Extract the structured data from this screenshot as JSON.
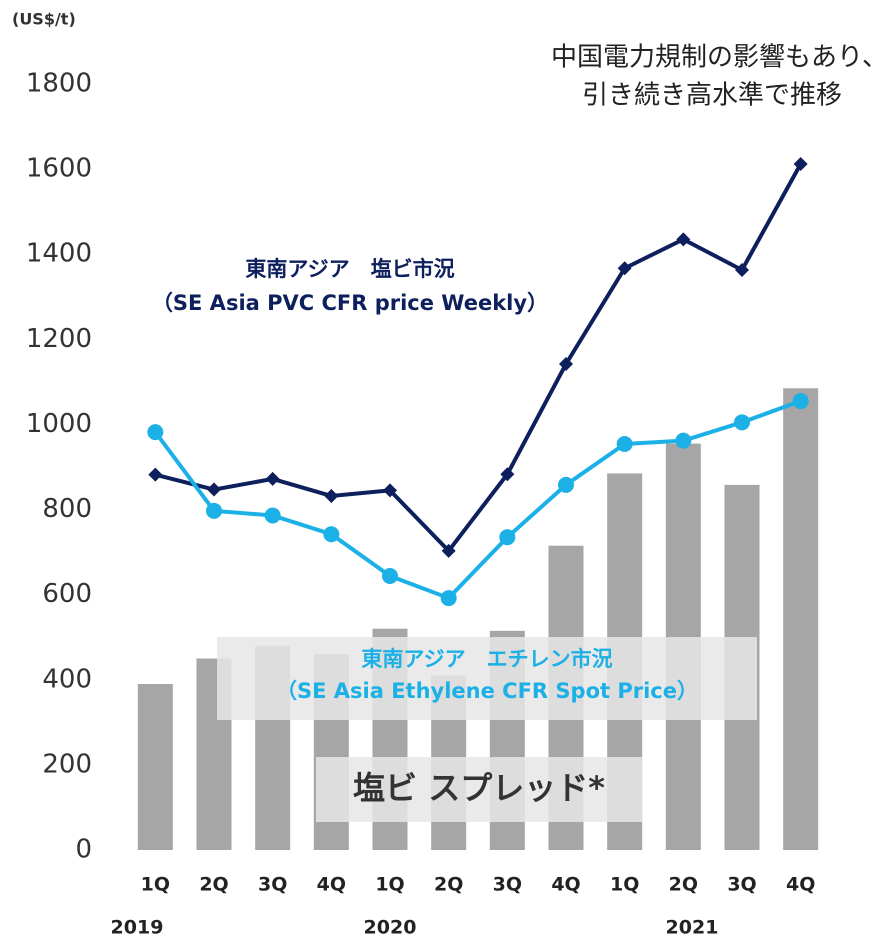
{
  "chart_data": {
    "type": "bar_line",
    "unit_label": "(US$/t)",
    "annotation": [
      "中国電力規制の影響もあり、",
      "引き続き高水準で推移"
    ],
    "categories": [
      "1Q",
      "2Q",
      "3Q",
      "4Q",
      "1Q",
      "2Q",
      "3Q",
      "4Q",
      "1Q",
      "2Q",
      "3Q",
      "4Q"
    ],
    "years": [
      "2019",
      "2020",
      "2021"
    ],
    "ylim": [
      0,
      1800
    ],
    "yticks": [
      0,
      200,
      400,
      600,
      800,
      1000,
      1200,
      1400,
      1600,
      1800
    ],
    "series": [
      {
        "name": "塩ビ スプレッド*",
        "type": "bar",
        "color": "#a6a6a6",
        "values": [
          390,
          450,
          480,
          460,
          520,
          410,
          515,
          715,
          885,
          955,
          858,
          1085
        ]
      },
      {
        "name": "東南アジア　塩ビ市況",
        "subname": "（SE Asia PVC CFR price Weekly）",
        "type": "line",
        "marker": "diamond",
        "color": "#0d1f5c",
        "values": [
          882,
          847,
          872,
          832,
          845,
          703,
          883,
          1142,
          1367,
          1435,
          1363,
          1612
        ]
      },
      {
        "name": "東南アジア　エチレン市況",
        "subname": "（SE Asia Ethylene CFR Spot Price）",
        "type": "line",
        "marker": "circle",
        "color": "#1bb0e6",
        "values": [
          982,
          797,
          786,
          742,
          644,
          592,
          735,
          858,
          954,
          962,
          1005,
          1055
        ]
      }
    ]
  }
}
